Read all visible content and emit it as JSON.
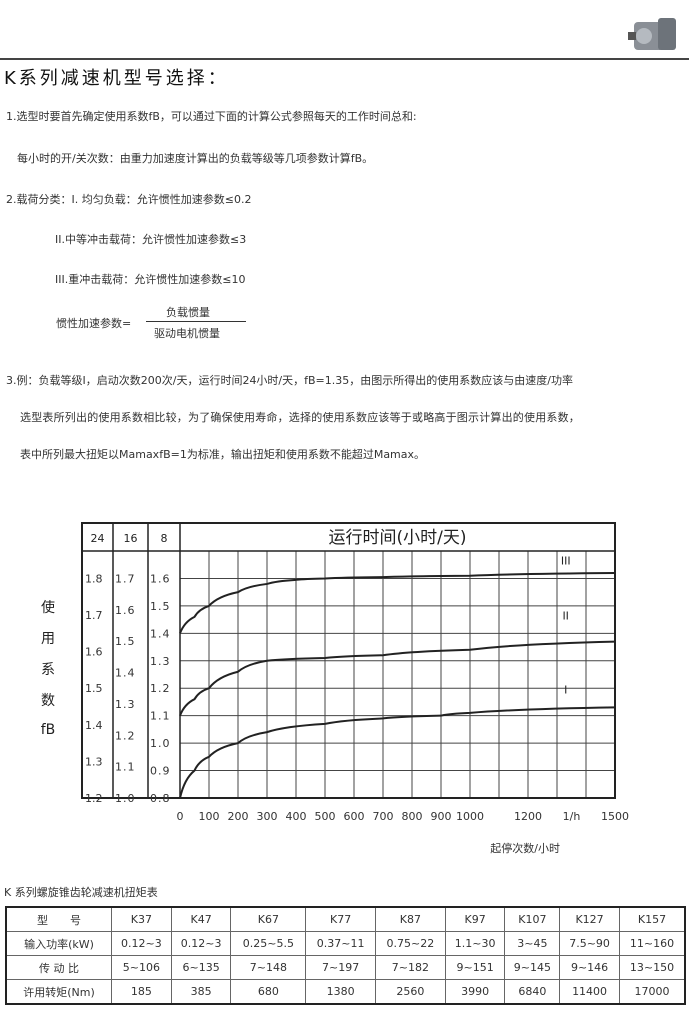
{
  "title": "K系列减速机型号选择：",
  "paragraphs": {
    "p1": "1.选型时要首先确定使用系数fB，可以通过下面的计算公式参照每天的工作时间总和:",
    "p1b": "每小时的开/关次数：由重力加速度计算出的负载等级等几项参数计算fB。",
    "p2": "2.载荷分类：I. 均匀负载：允许惯性加速参数≤0.2",
    "p2b": "II.中等冲击载荷：允许惯性加速参数≤3",
    "p2c": "III.重冲击载荷：允许惯性加速参数≤10",
    "formula_label": "惯性加速参数=",
    "formula_num": "负载惯量",
    "formula_den": "驱动电机惯量",
    "p3": "3.例：负载等级I，启动次数200次/天，运行时间24小时/天，fB=1.35，由图示所得出的使用系数应该与由速度/功率",
    "p3b": "选型表所列出的使用系数相比较，为了确保使用寿命，选择的使用系数应该等于或略高于图示计算出的使用系数，",
    "p3c": "表中所列最大扭矩以MamaxfB=1为标准，输出扭矩和使用系数不能超过Mamax。"
  },
  "chart_data": {
    "type": "line",
    "title": "运行时间(小时/天)",
    "ylabel": "使用系数fB",
    "xlabel": "起停次数/小时",
    "x_unit_label": "1/h",
    "xlim": [
      0,
      1500
    ],
    "ylim": [
      0.8,
      1.7
    ],
    "grid": true,
    "x_ticks": [
      0,
      100,
      200,
      300,
      400,
      500,
      600,
      700,
      800,
      900,
      1000,
      1200,
      1500
    ],
    "hours_columns": [
      "24",
      "16",
      "8"
    ],
    "y_axes": {
      "24": [
        "1.2",
        "1.3",
        "1.4",
        "1.5",
        "1.6",
        "1.7",
        "1.8"
      ],
      "16": [
        "1.0",
        "1.1",
        "1.2",
        "1.3",
        "1.4",
        "1.5",
        "1.6",
        "1.7"
      ],
      "8": [
        "0.8",
        "0.9",
        "1.0",
        "1.1",
        "1.2",
        "1.3",
        "1.4",
        "1.5",
        "1.6"
      ]
    },
    "series": [
      {
        "name": "III",
        "x": [
          0,
          50,
          100,
          200,
          300,
          400,
          500,
          700,
          1000,
          1500
        ],
        "y": [
          1.4,
          1.46,
          1.5,
          1.55,
          1.58,
          1.595,
          1.6,
          1.605,
          1.61,
          1.62
        ]
      },
      {
        "name": "II",
        "x": [
          0,
          50,
          100,
          200,
          300,
          500,
          700,
          1000,
          1500
        ],
        "y": [
          1.1,
          1.16,
          1.2,
          1.26,
          1.3,
          1.31,
          1.32,
          1.34,
          1.37
        ]
      },
      {
        "name": "I",
        "x": [
          0,
          50,
          100,
          200,
          300,
          500,
          700,
          900,
          1000,
          1500
        ],
        "y": [
          0.8,
          0.9,
          0.95,
          1.0,
          1.04,
          1.07,
          1.09,
          1.1,
          1.11,
          1.13
        ]
      }
    ]
  },
  "table": {
    "caption": "K 系列螺旋锥齿轮减速机扭矩表",
    "rows": [
      [
        "型　　号",
        "K37",
        "K47",
        "K67",
        "K77",
        "K87",
        "K97",
        "K107",
        "K127",
        "K157"
      ],
      [
        "输入功率(kW)",
        "0.12~3",
        "0.12~3",
        "0.25~5.5",
        "0.37~11",
        "0.75~22",
        "1.1~30",
        "3~45",
        "7.5~90",
        "11~160"
      ],
      [
        "传 动 比",
        "5~106",
        "6~135",
        "7~148",
        "7~197",
        "7~182",
        "9~151",
        "9~145",
        "9~146",
        "13~150"
      ],
      [
        "许用转矩(Nm)",
        "185",
        "385",
        "680",
        "1380",
        "2560",
        "3990",
        "6840",
        "11400",
        "17000"
      ]
    ]
  },
  "colors": {
    "ink": "#222222",
    "grid": "#444444"
  }
}
